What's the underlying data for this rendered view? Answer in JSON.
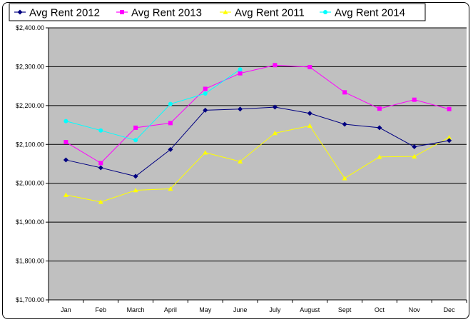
{
  "chart_data": {
    "type": "line",
    "categories": [
      "Jan",
      "Feb",
      "March",
      "April",
      "May",
      "June",
      "July",
      "August",
      "Sept",
      "Oct",
      "Nov",
      "Dec"
    ],
    "ylim": [
      1700,
      2400
    ],
    "yticks": [
      1700,
      1800,
      1900,
      2000,
      2100,
      2200,
      2300,
      2400
    ],
    "ytick_labels": [
      "$1,700.00",
      "$1,800.00",
      "$1,900.00",
      "$2,000.00",
      "$2,100.00",
      "$2,200.00",
      "$2,300.00",
      "$2,400.00"
    ],
    "grid": true,
    "plot_background": "#c0c0c0",
    "legend_position": "top",
    "series": [
      {
        "name": "Avg Rent 2012",
        "color": "#000080",
        "marker": "diamond",
        "values": [
          2060,
          2040,
          2018,
          2087,
          2188,
          2191,
          2196,
          2180,
          2152,
          2143,
          2094,
          2110
        ]
      },
      {
        "name": "Avg Rent 2013",
        "color": "#ff00ff",
        "marker": "square",
        "values": [
          2106,
          2052,
          2143,
          2155,
          2243,
          2283,
          2304,
          2299,
          2234,
          2192,
          2215,
          2191
        ]
      },
      {
        "name": "Avg Rent 2011",
        "color": "#ffff00",
        "marker": "triangle",
        "values": [
          1970,
          1952,
          1982,
          1986,
          2079,
          2056,
          2129,
          2148,
          2013,
          2068,
          2069,
          2118
        ]
      },
      {
        "name": "Avg Rent 2014",
        "color": "#00ffff",
        "marker": "circle",
        "values": [
          2160,
          2136,
          2111,
          2204,
          2231,
          2293,
          null,
          null,
          null,
          null,
          null,
          null
        ]
      }
    ]
  }
}
